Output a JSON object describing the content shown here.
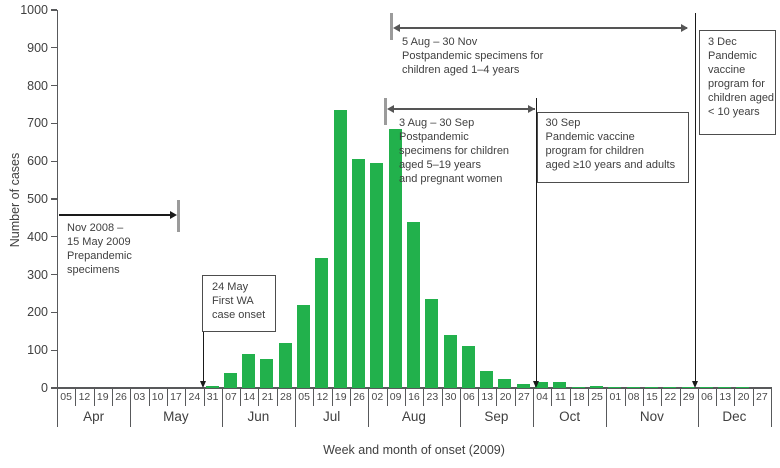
{
  "chart_data": {
    "type": "bar",
    "title": "",
    "xlabel": "Week and month of onset (2009)",
    "ylabel": "Number of cases",
    "ylim": [
      0,
      1000
    ],
    "ytick_step": 100,
    "grid": false,
    "bar_color": "#22b14c",
    "months": [
      {
        "label": "Apr",
        "weeks": [
          "05",
          "12",
          "19",
          "26"
        ],
        "values": [
          0,
          0,
          0,
          0
        ]
      },
      {
        "label": "May",
        "weeks": [
          "03",
          "10",
          "17",
          "24",
          "31"
        ],
        "values": [
          0,
          0,
          0,
          0,
          5
        ]
      },
      {
        "label": "Jun",
        "weeks": [
          "07",
          "14",
          "21",
          "28"
        ],
        "values": [
          40,
          90,
          78,
          120
        ]
      },
      {
        "label": "Jul",
        "weeks": [
          "05",
          "12",
          "19",
          "26"
        ],
        "values": [
          220,
          345,
          735,
          605
        ]
      },
      {
        "label": "Aug",
        "weeks": [
          "02",
          "09",
          "16",
          "23",
          "30"
        ],
        "values": [
          595,
          685,
          440,
          235,
          140
        ]
      },
      {
        "label": "Sep",
        "weeks": [
          "06",
          "13",
          "20",
          "27"
        ],
        "values": [
          110,
          45,
          25,
          12
        ]
      },
      {
        "label": "Oct",
        "weeks": [
          "04",
          "11",
          "18",
          "25"
        ],
        "values": [
          15,
          15,
          4,
          5
        ]
      },
      {
        "label": "Nov",
        "weeks": [
          "01",
          "08",
          "15",
          "22",
          "29"
        ],
        "values": [
          4,
          2,
          4,
          2,
          4
        ]
      },
      {
        "label": "Dec",
        "weeks": [
          "06",
          "13",
          "20",
          "27"
        ],
        "values": [
          2,
          4,
          1,
          0
        ]
      }
    ],
    "annotations": {
      "prepandemic": {
        "text": "Nov 2008 –\n15 May 2009\nPrepandemic\nspecimens"
      },
      "first_case": {
        "text": "24 May\nFirst WA\ncase onset"
      },
      "postpandemic_5_19": {
        "text": "3 Aug – 30 Sep\nPostpandemic\nspecimens for children\naged 5–19 years\nand pregnant women"
      },
      "postpandemic_1_4": {
        "text": "5 Aug – 30 Nov\nPostpandemic specimens for\nchildren aged 1–4 years"
      },
      "vaccine_10_and_adults": {
        "text": "30 Sep\nPandemic vaccine\nprogram for children\naged ≥10 years and adults"
      },
      "vaccine_under_10": {
        "text": "3 Dec\nPandemic\nvaccine\nprogram for\nchildren aged\n< 10 years"
      }
    }
  }
}
